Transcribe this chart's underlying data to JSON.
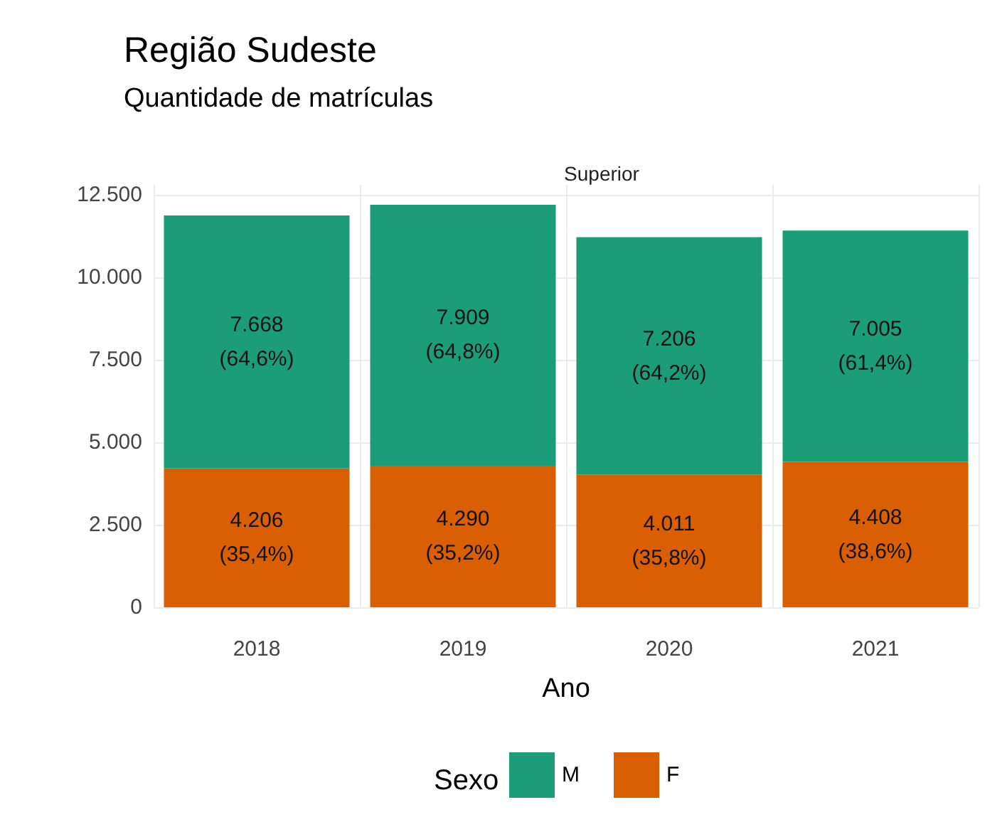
{
  "chart_data": {
    "type": "bar",
    "title": "Região Sudeste",
    "subtitle": "Quantidade de matrículas",
    "annotations": [
      "Superior"
    ],
    "xlabel": "Ano",
    "legend_title": "Sexo",
    "categories": [
      "2018",
      "2019",
      "2020",
      "2021"
    ],
    "stacked": true,
    "series": [
      {
        "name": "F",
        "color": "#d95f02",
        "values": [
          4206,
          4290,
          4011,
          4408
        ],
        "value_labels": [
          "4.206\n(35,4%)",
          "4.290\n(35,2%)",
          "4.011\n(35,8%)",
          "4.408\n(38,6%)"
        ]
      },
      {
        "name": "M",
        "color": "#1b9e77",
        "values": [
          7668,
          7909,
          7206,
          7005
        ],
        "value_labels": [
          "7.668\n(64,6%)",
          "7.909\n(64,8%)",
          "7.206\n(64,2%)",
          "7.005\n(61,4%)"
        ]
      }
    ],
    "ylim": [
      0,
      12800
    ],
    "yticks": [
      0,
      {
        "value": 2500,
        "label": "2.500"
      },
      {
        "value": 5000,
        "label": "5.000"
      },
      {
        "value": 7500,
        "label": "7.500"
      },
      {
        "value": 10000,
        "label": "10.000"
      },
      {
        "value": 12500,
        "label": "12.500"
      }
    ],
    "grid": true,
    "legend": "bottom"
  }
}
